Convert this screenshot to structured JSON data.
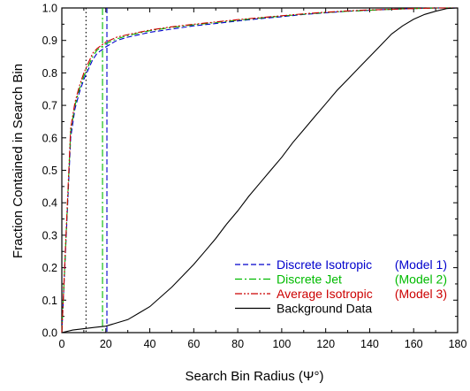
{
  "chart_data": {
    "type": "line",
    "title": "",
    "xlabel": "Search Bin Radius (Ψ°)",
    "ylabel": "Fraction Contained in Search Bin",
    "xlim": [
      0,
      180
    ],
    "ylim": [
      0.0,
      1.0
    ],
    "x_ticks": [
      0,
      20,
      40,
      60,
      80,
      100,
      120,
      140,
      160,
      180
    ],
    "y_ticks": [
      0.0,
      0.1,
      0.2,
      0.3,
      0.4,
      0.5,
      0.6,
      0.7,
      0.8,
      0.9,
      1.0
    ],
    "x_tick_labels": [
      "0",
      "20",
      "40",
      "60",
      "80",
      "100",
      "120",
      "140",
      "160",
      "180"
    ],
    "y_tick_labels": [
      "0.0",
      "0.1",
      "0.2",
      "0.3",
      "0.4",
      "0.5",
      "0.6",
      "0.7",
      "0.8",
      "0.9",
      "1.0"
    ],
    "grid": false,
    "legend_position": "bottom-right",
    "series": [
      {
        "name": "Discrete Isotropic",
        "model": "(Model 1)",
        "color": "#0000cc",
        "dash": "dashed",
        "x": [
          0,
          2,
          4,
          6,
          8,
          10,
          12,
          14,
          16,
          18,
          20,
          25,
          30,
          40,
          50,
          60,
          70,
          80,
          90,
          100,
          110,
          120,
          130,
          140,
          150,
          160,
          170,
          180
        ],
        "y": [
          0.0,
          0.3,
          0.6,
          0.69,
          0.74,
          0.78,
          0.81,
          0.84,
          0.86,
          0.87,
          0.88,
          0.9,
          0.91,
          0.925,
          0.935,
          0.945,
          0.952,
          0.96,
          0.967,
          0.973,
          0.98,
          0.985,
          0.99,
          0.993,
          0.996,
          0.998,
          1.0,
          1.0
        ]
      },
      {
        "name": "Discrete Jet",
        "model": "(Model 2)",
        "color": "#00bb00",
        "dash": "dash-dot",
        "x": [
          0,
          2,
          4,
          6,
          8,
          10,
          12,
          14,
          16,
          18,
          20,
          25,
          30,
          40,
          50,
          60,
          70,
          80,
          90,
          100,
          110,
          120,
          130,
          140,
          150,
          160,
          170,
          180
        ],
        "y": [
          0.0,
          0.31,
          0.62,
          0.7,
          0.75,
          0.79,
          0.82,
          0.85,
          0.87,
          0.88,
          0.89,
          0.905,
          0.915,
          0.93,
          0.94,
          0.948,
          0.955,
          0.962,
          0.969,
          0.975,
          0.981,
          0.986,
          0.99,
          0.993,
          0.996,
          0.998,
          1.0,
          1.0
        ]
      },
      {
        "name": "Average Isotropic",
        "model": "(Model 3)",
        "color": "#cc0000",
        "dash": "dash-dot-dot",
        "x": [
          0,
          2,
          4,
          6,
          8,
          10,
          12,
          14,
          16,
          18,
          20,
          25,
          30,
          40,
          50,
          60,
          70,
          80,
          90,
          100,
          110,
          120,
          130,
          140,
          150,
          160,
          170,
          180
        ],
        "y": [
          0.0,
          0.32,
          0.63,
          0.71,
          0.76,
          0.8,
          0.83,
          0.86,
          0.875,
          0.885,
          0.895,
          0.91,
          0.918,
          0.932,
          0.942,
          0.95,
          0.957,
          0.964,
          0.97,
          0.976,
          0.982,
          0.987,
          0.991,
          0.994,
          0.996,
          0.998,
          1.0,
          1.0
        ]
      },
      {
        "name": "Background Data",
        "model": "",
        "color": "#000000",
        "dash": "solid",
        "x": [
          0,
          5,
          10,
          15,
          20,
          25,
          30,
          35,
          40,
          45,
          50,
          55,
          60,
          65,
          70,
          75,
          80,
          85,
          90,
          95,
          100,
          105,
          110,
          115,
          120,
          125,
          130,
          135,
          140,
          145,
          150,
          155,
          160,
          165,
          170,
          175,
          180
        ],
        "y": [
          0.0,
          0.008,
          0.012,
          0.016,
          0.02,
          0.03,
          0.04,
          0.06,
          0.08,
          0.11,
          0.14,
          0.175,
          0.21,
          0.25,
          0.29,
          0.335,
          0.375,
          0.42,
          0.46,
          0.5,
          0.54,
          0.585,
          0.625,
          0.665,
          0.705,
          0.745,
          0.78,
          0.815,
          0.85,
          0.885,
          0.92,
          0.945,
          0.965,
          0.98,
          0.99,
          0.998,
          1.0
        ]
      }
    ],
    "reference_lines": [
      {
        "x": 11,
        "color": "#000000",
        "dash": "dotted"
      },
      {
        "x": 18.5,
        "color": "#00bb00",
        "dash": "dash-dot"
      },
      {
        "x": 20.5,
        "color": "#0000cc",
        "dash": "dashed"
      }
    ]
  }
}
